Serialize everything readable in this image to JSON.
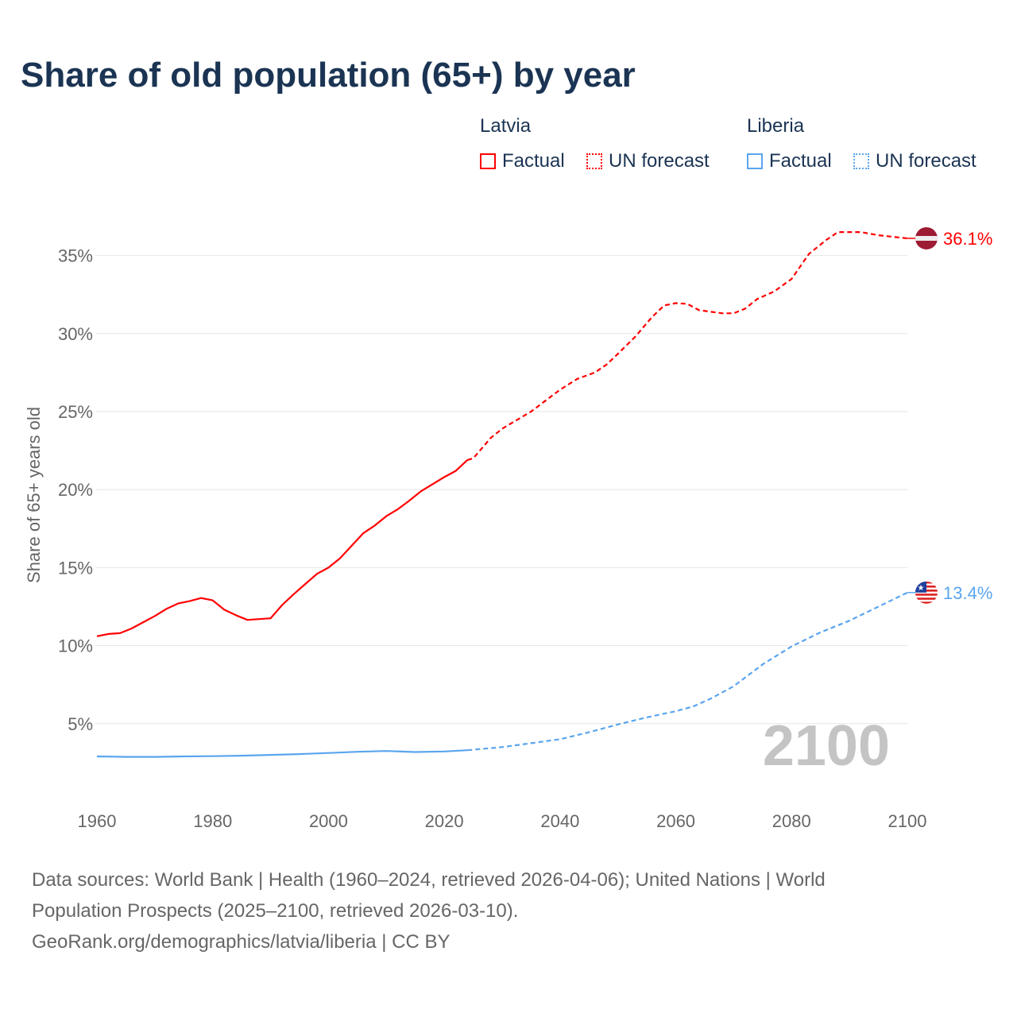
{
  "title": "Share of old population (65+) by year",
  "legend": [
    {
      "country": "Latvia",
      "factual": "Factual",
      "forecast": "UN forecast",
      "color": "#ff0000"
    },
    {
      "country": "Liberia",
      "factual": "Factual",
      "forecast": "UN forecast",
      "color": "#5aa5ee"
    }
  ],
  "year_watermark": "2100",
  "footer": {
    "line1": "Data sources: World Bank | Health (1960–2024, retrieved 2026-04-06); United Nations | World",
    "line2": "Population Prospects (2025–2100, retrieved 2026-03-10).",
    "line3": "GeoRank.org/demographics/latvia/liberia | CC BY"
  },
  "chart_data": {
    "type": "line",
    "title": "Share of old population (65+) by year",
    "ylabel": "Share of 65+ years old",
    "xlabel": "",
    "xlim": [
      1960,
      2100
    ],
    "ylim": [
      0,
      37
    ],
    "x_ticks": [
      "1960",
      "1980",
      "2000",
      "2020",
      "2040",
      "2060",
      "2080",
      "2100"
    ],
    "y_ticks": [
      5,
      10,
      15,
      20,
      25,
      30,
      35
    ],
    "y_tick_labels": [
      "5%",
      "10%",
      "15%",
      "20%",
      "25%",
      "30%",
      "35%"
    ],
    "grid": true,
    "series": [
      {
        "name": "Latvia",
        "color": "#ff0000",
        "end_label": "36.1%",
        "flag": "latvia-flag-icon",
        "factual": [
          [
            1960,
            10.6
          ],
          [
            1962,
            10.75
          ],
          [
            1964,
            10.8
          ],
          [
            1966,
            11.1
          ],
          [
            1968,
            11.5
          ],
          [
            1970,
            11.9
          ],
          [
            1972,
            12.35
          ],
          [
            1974,
            12.7
          ],
          [
            1976,
            12.85
          ],
          [
            1978,
            13.05
          ],
          [
            1980,
            12.9
          ],
          [
            1982,
            12.3
          ],
          [
            1984,
            11.95
          ],
          [
            1986,
            11.65
          ],
          [
            1988,
            11.7
          ],
          [
            1990,
            11.75
          ],
          [
            1992,
            12.6
          ],
          [
            1994,
            13.3
          ],
          [
            1996,
            13.95
          ],
          [
            1998,
            14.6
          ],
          [
            2000,
            15.0
          ],
          [
            2002,
            15.6
          ],
          [
            2004,
            16.4
          ],
          [
            2006,
            17.2
          ],
          [
            2008,
            17.7
          ],
          [
            2010,
            18.3
          ],
          [
            2012,
            18.75
          ],
          [
            2014,
            19.3
          ],
          [
            2016,
            19.9
          ],
          [
            2018,
            20.35
          ],
          [
            2020,
            20.8
          ],
          [
            2022,
            21.2
          ],
          [
            2024,
            21.9
          ]
        ],
        "forecast": [
          [
            2024,
            21.9
          ],
          [
            2025,
            22.0
          ],
          [
            2028,
            23.3
          ],
          [
            2030,
            23.9
          ],
          [
            2035,
            25.0
          ],
          [
            2040,
            26.4
          ],
          [
            2043,
            27.1
          ],
          [
            2046,
            27.5
          ],
          [
            2048,
            28.0
          ],
          [
            2050,
            28.7
          ],
          [
            2053,
            29.8
          ],
          [
            2056,
            31.1
          ],
          [
            2058,
            31.8
          ],
          [
            2060,
            31.95
          ],
          [
            2062,
            31.9
          ],
          [
            2064,
            31.5
          ],
          [
            2066,
            31.4
          ],
          [
            2068,
            31.3
          ],
          [
            2070,
            31.3
          ],
          [
            2072,
            31.6
          ],
          [
            2074,
            32.2
          ],
          [
            2077,
            32.7
          ],
          [
            2080,
            33.5
          ],
          [
            2083,
            35.1
          ],
          [
            2086,
            36.0
          ],
          [
            2088,
            36.5
          ],
          [
            2090,
            36.5
          ],
          [
            2092,
            36.5
          ],
          [
            2095,
            36.3
          ],
          [
            2100,
            36.1
          ]
        ]
      },
      {
        "name": "Liberia",
        "color": "#5aa5ee",
        "end_label": "13.4%",
        "flag": "liberia-flag-icon",
        "factual": [
          [
            1960,
            2.9
          ],
          [
            1965,
            2.87
          ],
          [
            1970,
            2.87
          ],
          [
            1975,
            2.9
          ],
          [
            1980,
            2.92
          ],
          [
            1985,
            2.95
          ],
          [
            1990,
            3.0
          ],
          [
            1995,
            3.05
          ],
          [
            2000,
            3.12
          ],
          [
            2005,
            3.2
          ],
          [
            2010,
            3.25
          ],
          [
            2015,
            3.18
          ],
          [
            2020,
            3.22
          ],
          [
            2024,
            3.3
          ]
        ],
        "forecast": [
          [
            2024,
            3.3
          ],
          [
            2030,
            3.5
          ],
          [
            2035,
            3.75
          ],
          [
            2040,
            4.0
          ],
          [
            2045,
            4.45
          ],
          [
            2050,
            4.95
          ],
          [
            2055,
            5.4
          ],
          [
            2060,
            5.8
          ],
          [
            2063,
            6.1
          ],
          [
            2066,
            6.6
          ],
          [
            2070,
            7.4
          ],
          [
            2075,
            8.8
          ],
          [
            2080,
            9.95
          ],
          [
            2085,
            10.85
          ],
          [
            2090,
            11.6
          ],
          [
            2095,
            12.5
          ],
          [
            2100,
            13.4
          ]
        ]
      }
    ]
  }
}
